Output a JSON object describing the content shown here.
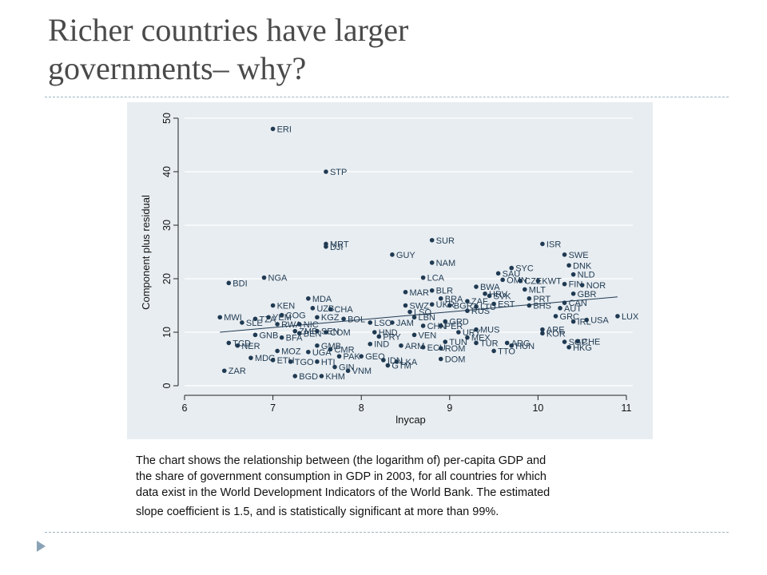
{
  "slide": {
    "title_line1": "Richer countries have larger",
    "title_line2": "governments– why?",
    "caption_lines": [
      "The chart shows the relationship between (the logarithm of) per-capita GDP and",
      "the share of government consumption in GDP in 2003, for all countries for which",
      "data exist in the World Development Indicators of the World Bank. The estimated",
      "slope coefficient is 1.5, and is statistically significant at more than 99%."
    ]
  },
  "colors": {
    "plot_bg": "#e8edf1",
    "outer_bg": "#ffffff",
    "marker": "#1f3a52",
    "line": "#1f3a52"
  },
  "chart_data": {
    "type": "scatter",
    "xlabel": "lnycap",
    "ylabel": "Component plus residual",
    "xlim": [
      6,
      11
    ],
    "ylim": [
      0,
      50
    ],
    "xticks": [
      6,
      7,
      8,
      9,
      10,
      11
    ],
    "yticks": [
      0,
      10,
      20,
      30,
      40,
      50
    ],
    "fit_line": {
      "x": [
        6.4,
        10.9
      ],
      "y": [
        10.0,
        16.6
      ]
    },
    "points": [
      {
        "x": 7.0,
        "y": 48.0,
        "label": "ERI"
      },
      {
        "x": 7.6,
        "y": 40.0,
        "label": "STP"
      },
      {
        "x": 7.6,
        "y": 26.5,
        "label": "MRT"
      },
      {
        "x": 7.6,
        "y": 26.0,
        "label": "DJI"
      },
      {
        "x": 8.8,
        "y": 27.2,
        "label": "SUR"
      },
      {
        "x": 8.35,
        "y": 24.5,
        "label": "GUY"
      },
      {
        "x": 8.8,
        "y": 23.0,
        "label": "NAM"
      },
      {
        "x": 8.7,
        "y": 20.2,
        "label": "LCA"
      },
      {
        "x": 6.9,
        "y": 20.2,
        "label": "NGA"
      },
      {
        "x": 6.5,
        "y": 19.2,
        "label": "BDI"
      },
      {
        "x": 10.05,
        "y": 26.5,
        "label": "ISR"
      },
      {
        "x": 10.3,
        "y": 24.5,
        "label": "SWE"
      },
      {
        "x": 10.35,
        "y": 22.5,
        "label": "DNK"
      },
      {
        "x": 10.4,
        "y": 20.8,
        "label": "NLD"
      },
      {
        "x": 10.5,
        "y": 18.8,
        "label": "NOR"
      },
      {
        "x": 9.7,
        "y": 22.0,
        "label": "SYC"
      },
      {
        "x": 9.55,
        "y": 21.0,
        "label": "SAU"
      },
      {
        "x": 9.6,
        "y": 19.8,
        "label": "OMN"
      },
      {
        "x": 9.8,
        "y": 19.6,
        "label": "CZE"
      },
      {
        "x": 10.0,
        "y": 19.6,
        "label": "KWT"
      },
      {
        "x": 10.3,
        "y": 19.0,
        "label": "FIN"
      },
      {
        "x": 9.85,
        "y": 18.0,
        "label": "MLT"
      },
      {
        "x": 10.4,
        "y": 17.2,
        "label": "GBR"
      },
      {
        "x": 9.9,
        "y": 16.3,
        "label": "PRT"
      },
      {
        "x": 10.3,
        "y": 15.5,
        "label": "CAN"
      },
      {
        "x": 9.9,
        "y": 15.0,
        "label": "BHS"
      },
      {
        "x": 10.25,
        "y": 14.5,
        "label": "AUT"
      },
      {
        "x": 9.3,
        "y": 18.5,
        "label": "BWA"
      },
      {
        "x": 9.4,
        "y": 17.2,
        "label": "HRV"
      },
      {
        "x": 9.45,
        "y": 16.8,
        "label": "SVK"
      },
      {
        "x": 8.5,
        "y": 17.5,
        "label": "MAR"
      },
      {
        "x": 8.8,
        "y": 17.8,
        "label": "BLR"
      },
      {
        "x": 8.9,
        "y": 16.3,
        "label": "BRA"
      },
      {
        "x": 9.2,
        "y": 15.8,
        "label": "ZAF"
      },
      {
        "x": 9.5,
        "y": 15.3,
        "label": "EST"
      },
      {
        "x": 8.5,
        "y": 15.0,
        "label": "SWZ"
      },
      {
        "x": 8.8,
        "y": 15.2,
        "label": "UKR"
      },
      {
        "x": 9.0,
        "y": 15.0,
        "label": "BGR"
      },
      {
        "x": 9.3,
        "y": 14.8,
        "label": "LTU"
      },
      {
        "x": 9.2,
        "y": 14.0,
        "label": "RUS"
      },
      {
        "x": 8.55,
        "y": 13.8,
        "label": "LSO"
      },
      {
        "x": 8.6,
        "y": 12.8,
        "label": "LBN"
      },
      {
        "x": 7.4,
        "y": 16.3,
        "label": "MDA"
      },
      {
        "x": 7.0,
        "y": 15.0,
        "label": "KEN"
      },
      {
        "x": 7.45,
        "y": 14.5,
        "label": "UZB"
      },
      {
        "x": 7.65,
        "y": 14.3,
        "label": "CHA"
      },
      {
        "x": 7.1,
        "y": 13.2,
        "label": "COG"
      },
      {
        "x": 6.95,
        "y": 12.8,
        "label": "YEM"
      },
      {
        "x": 6.4,
        "y": 12.8,
        "label": "MWI"
      },
      {
        "x": 6.8,
        "y": 12.5,
        "label": "TZA"
      },
      {
        "x": 6.65,
        "y": 11.8,
        "label": "SLE"
      },
      {
        "x": 7.05,
        "y": 11.5,
        "label": "RWA"
      },
      {
        "x": 7.3,
        "y": 11.5,
        "label": "NIC"
      },
      {
        "x": 7.5,
        "y": 12.8,
        "label": "KGZ"
      },
      {
        "x": 7.8,
        "y": 12.5,
        "label": "BOL"
      },
      {
        "x": 8.1,
        "y": 11.8,
        "label": "LSO"
      },
      {
        "x": 8.35,
        "y": 11.8,
        "label": "JAM"
      },
      {
        "x": 8.7,
        "y": 11.2,
        "label": "CHN"
      },
      {
        "x": 8.95,
        "y": 12.0,
        "label": "GRD"
      },
      {
        "x": 8.9,
        "y": 11.2,
        "label": "PER"
      },
      {
        "x": 9.3,
        "y": 10.5,
        "label": "MUS"
      },
      {
        "x": 9.1,
        "y": 10.0,
        "label": "URY"
      },
      {
        "x": 8.6,
        "y": 9.5,
        "label": "VEN"
      },
      {
        "x": 9.2,
        "y": 9.0,
        "label": "MEX"
      },
      {
        "x": 7.25,
        "y": 10.2,
        "label": "ZMB"
      },
      {
        "x": 7.3,
        "y": 9.8,
        "label": "BEN"
      },
      {
        "x": 7.5,
        "y": 10.2,
        "label": "SEN"
      },
      {
        "x": 7.6,
        "y": 10.0,
        "label": "COM"
      },
      {
        "x": 6.8,
        "y": 9.5,
        "label": "GNB"
      },
      {
        "x": 7.1,
        "y": 9.0,
        "label": "BFA"
      },
      {
        "x": 8.15,
        "y": 10.0,
        "label": "HND"
      },
      {
        "x": 8.2,
        "y": 9.2,
        "label": "PRY"
      },
      {
        "x": 8.1,
        "y": 7.8,
        "label": "IND"
      },
      {
        "x": 8.45,
        "y": 7.5,
        "label": "ARM"
      },
      {
        "x": 8.7,
        "y": 7.2,
        "label": "ECU"
      },
      {
        "x": 8.9,
        "y": 7.0,
        "label": "ROM"
      },
      {
        "x": 8.95,
        "y": 8.2,
        "label": "TUN"
      },
      {
        "x": 9.3,
        "y": 8.0,
        "label": "TUR"
      },
      {
        "x": 9.65,
        "y": 8.0,
        "label": "ARG"
      },
      {
        "x": 9.7,
        "y": 7.5,
        "label": "HUN"
      },
      {
        "x": 9.5,
        "y": 6.5,
        "label": "TTO"
      },
      {
        "x": 10.05,
        "y": 10.5,
        "label": "ARE"
      },
      {
        "x": 10.05,
        "y": 9.8,
        "label": "KOR"
      },
      {
        "x": 10.2,
        "y": 13.0,
        "label": "GRC"
      },
      {
        "x": 10.4,
        "y": 12.0,
        "label": "IRL"
      },
      {
        "x": 10.55,
        "y": 12.3,
        "label": "USA"
      },
      {
        "x": 10.9,
        "y": 13.0,
        "label": "LUX"
      },
      {
        "x": 10.3,
        "y": 8.2,
        "label": "SGP"
      },
      {
        "x": 10.45,
        "y": 8.3,
        "label": "CHE"
      },
      {
        "x": 10.35,
        "y": 7.2,
        "label": "HKG"
      },
      {
        "x": 6.5,
        "y": 8.0,
        "label": "TCD"
      },
      {
        "x": 6.6,
        "y": 7.5,
        "label": "NER"
      },
      {
        "x": 7.05,
        "y": 6.5,
        "label": "MOZ"
      },
      {
        "x": 7.4,
        "y": 6.3,
        "label": "UGA"
      },
      {
        "x": 7.5,
        "y": 7.5,
        "label": "GMB"
      },
      {
        "x": 7.65,
        "y": 6.8,
        "label": "CMR"
      },
      {
        "x": 6.75,
        "y": 5.2,
        "label": "MDG"
      },
      {
        "x": 7.0,
        "y": 4.8,
        "label": "ETH"
      },
      {
        "x": 7.2,
        "y": 4.5,
        "label": "TGO"
      },
      {
        "x": 7.5,
        "y": 4.5,
        "label": "HTI"
      },
      {
        "x": 7.75,
        "y": 5.5,
        "label": "PAK"
      },
      {
        "x": 8.0,
        "y": 5.5,
        "label": "GEO"
      },
      {
        "x": 8.25,
        "y": 4.8,
        "label": "IDN"
      },
      {
        "x": 8.4,
        "y": 4.5,
        "label": "LKA"
      },
      {
        "x": 8.3,
        "y": 3.8,
        "label": "GTM"
      },
      {
        "x": 7.7,
        "y": 3.5,
        "label": "GIN"
      },
      {
        "x": 7.85,
        "y": 2.8,
        "label": "VNM"
      },
      {
        "x": 7.25,
        "y": 1.8,
        "label": "BGD"
      },
      {
        "x": 7.55,
        "y": 1.8,
        "label": "KHM"
      },
      {
        "x": 8.9,
        "y": 5.0,
        "label": "DOM"
      },
      {
        "x": 6.45,
        "y": 2.8,
        "label": "ZAR"
      }
    ]
  }
}
